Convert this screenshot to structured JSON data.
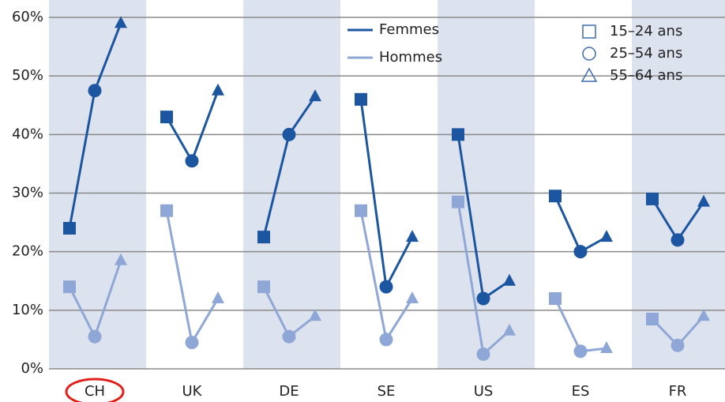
{
  "chart_data": {
    "type": "line",
    "categories": [
      "CH",
      "UK",
      "DE",
      "SE",
      "US",
      "ES",
      "FR"
    ],
    "age_groups": [
      "15–24 ans",
      "25–54 ans",
      "55–64 ans"
    ],
    "series": [
      {
        "name": "Femmes",
        "color": "#1c56a0",
        "values": [
          [
            24,
            47.5,
            59
          ],
          [
            43,
            35.5,
            47.5
          ],
          [
            22.5,
            40,
            46.5
          ],
          [
            46,
            14,
            22.5
          ],
          [
            40,
            12,
            15
          ],
          [
            29.5,
            20,
            22.5
          ],
          [
            29,
            22,
            28.5
          ]
        ]
      },
      {
        "name": "Hommes",
        "color": "#8fa7d6",
        "values": [
          [
            14,
            5.5,
            18.5
          ],
          [
            27,
            4.5,
            12
          ],
          [
            14,
            5.5,
            9
          ],
          [
            27,
            5,
            12
          ],
          [
            28.5,
            2.5,
            6.5
          ],
          [
            12,
            3,
            3.5
          ],
          [
            8.5,
            4,
            9
          ]
        ]
      }
    ],
    "ylim": [
      0,
      60
    ],
    "yticks": [
      {
        "value": 0,
        "label": "0%"
      },
      {
        "value": 10,
        "label": "10%"
      },
      {
        "value": 20,
        "label": "20%"
      },
      {
        "value": 30,
        "label": "30%"
      },
      {
        "value": 40,
        "label": "40%"
      },
      {
        "value": 50,
        "label": "50%"
      },
      {
        "value": 60,
        "label": "60%"
      }
    ],
    "grid": true,
    "band_color": "#dde2ef"
  }
}
